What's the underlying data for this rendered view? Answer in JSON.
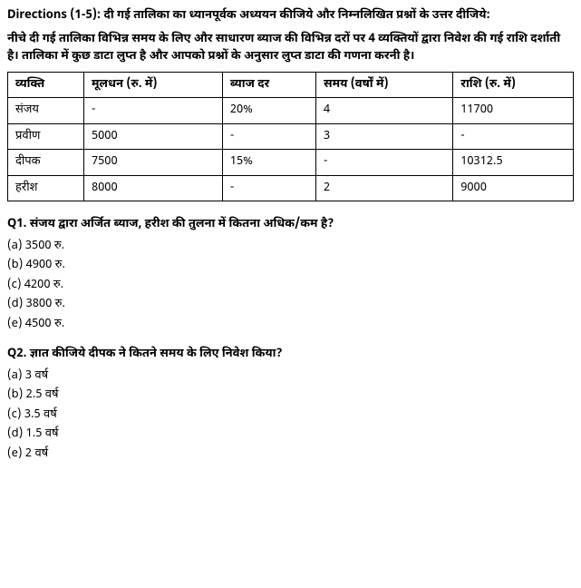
{
  "directions": {
    "label": "Directions (1-5):",
    "text_line1": " दी गई तालिका का ध्यानपूर्वक अध्ययन कीजिये और निम्नलिखित प्रश्नों के उत्तर दीजिये:",
    "text_line2": "नीचे दी गई तालिका विभिन्न समय के लिए और साधारण ब्याज की विभिन्न दरों पर 4 व्यक्तियों द्वारा निवेश की गई राशि दर्शाती है। तालिका में कुछ डाटा लुप्त है और आपको प्रश्नों के अनुसार लुप्त डाटा की गणना करनी है।"
  },
  "table": {
    "headers": [
      "व्यक्ति",
      "मूलधन (रु. में)",
      "ब्याज दर",
      "समय (वर्षों में)",
      "राशि (रु. में)"
    ],
    "rows": [
      [
        "संजय",
        "-",
        "20%",
        "4",
        "11700"
      ],
      [
        "प्रवीण",
        "5000",
        "-",
        "3",
        "-"
      ],
      [
        "दीपक",
        "7500",
        "15%",
        "-",
        "10312.5"
      ],
      [
        "हरीश",
        "8000",
        "-",
        "2",
        "9000"
      ]
    ]
  },
  "questions": [
    {
      "q": "Q1. संजय द्वारा अर्जित ब्याज, हरीश की तुलना में कितना अधिक/कम है?",
      "options": [
        "(a) 3500 रु.",
        "(b) 4900 रु.",
        "(c) 4200 रु.",
        "(d) 3800 रु.",
        "(e) 4500 रु."
      ]
    },
    {
      "q": "Q2. ज्ञात कीजिये दीपक ने कितने समय के लिए निवेश किया?",
      "options": [
        "(a) 3 वर्ष",
        "(b) 2.5 वर्ष",
        "(c) 3.5 वर्ष",
        "(d) 1.5 वर्ष",
        "(e) 2 वर्ष"
      ]
    }
  ]
}
